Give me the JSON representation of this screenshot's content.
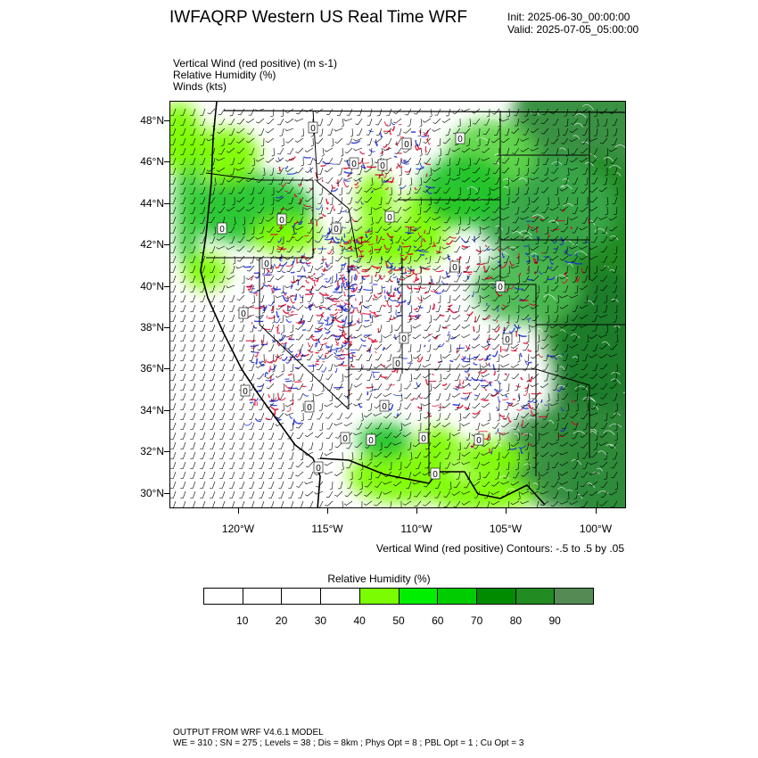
{
  "header": {
    "title": "IWFAQRP Western US Real Time WRF",
    "init": "Init: 2025-06-30_00:00:00",
    "valid": "Valid: 2025-07-05_05:00:00"
  },
  "fields": {
    "line1": "Vertical Wind (red positive)   (m s-1)",
    "line2": "Relative Humidity   (%)",
    "line3": "Winds   (kts)"
  },
  "map": {
    "lat_labels": [
      "48°N",
      "46°N",
      "44°N",
      "42°N",
      "40°N",
      "38°N",
      "36°N",
      "34°N",
      "32°N",
      "30°N"
    ],
    "lon_labels": [
      "120°W",
      "115°W",
      "110°W",
      "105°W",
      "100°W"
    ],
    "contour_value_label": "0",
    "colors": {
      "updraft": "#e0002a",
      "downdraft": "#1a28d8",
      "moist_low": "#7cfc00",
      "moist_high": "#2e8b3a",
      "border": "#000000"
    }
  },
  "contour_info": "Vertical Wind (red positive) Contours: -.5 to .5 by .05",
  "labelbar": {
    "title": "Relative Humidity   (%)",
    "ticks": [
      "10",
      "20",
      "30",
      "40",
      "50",
      "60",
      "70",
      "80",
      "90"
    ],
    "colors": [
      "#ffffff",
      "#ffffff",
      "#ffffff",
      "#ffffff",
      "#7cfc00",
      "#00ee00",
      "#00cd00",
      "#008b00",
      "#228b22",
      "#548b54"
    ]
  },
  "footer": {
    "line1": "OUTPUT FROM WRF V4.6.1 MODEL",
    "line2": "WE = 310 ; SN = 275 ; Levels = 38 ; Dis = 8km ; Phys Opt = 8 ; PBL Opt = 1 ; Cu Opt = 3"
  }
}
